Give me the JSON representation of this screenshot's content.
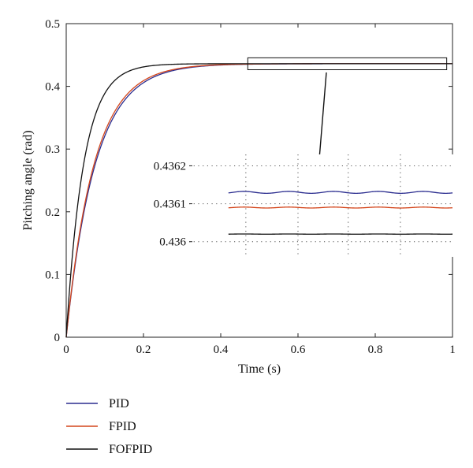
{
  "chart_data": {
    "type": "line",
    "xlabel": "Time (s)",
    "ylabel": "Pitching angle (rad)",
    "xlim": [
      0,
      1
    ],
    "ylim": [
      0,
      0.5
    ],
    "x_ticks": [
      "0",
      "0.2",
      "0.4",
      "0.6",
      "0.8",
      "1"
    ],
    "y_ticks": [
      "0",
      "0.1",
      "0.2",
      "0.3",
      "0.4",
      "0.5"
    ],
    "legend": {
      "position": "bottom-left",
      "entries": [
        "PID",
        "FPID",
        "FOFPID"
      ]
    },
    "series": [
      {
        "name": "PID",
        "color": "#2b2d8f",
        "final_value": 0.4361,
        "time_constant": 0.075
      },
      {
        "name": "FPID",
        "color": "#d4461c",
        "final_value": 0.4361,
        "time_constant": 0.072
      },
      {
        "name": "FOFPID",
        "color": "#111111",
        "final_value": 0.4361,
        "time_constant": 0.045
      }
    ],
    "zoom_box": {
      "xlim": [
        0.47,
        0.985
      ],
      "ylim": [
        0.4265,
        0.4455
      ]
    },
    "inset": {
      "y_ticks": [
        "0.4362",
        "0.4361",
        "0.436"
      ],
      "ylim": [
        0.43596,
        0.43623
      ],
      "series": [
        {
          "name": "PID",
          "color": "#2b2d8f",
          "mean": 0.43613,
          "amplitude": 2.5e-06,
          "periods": 5
        },
        {
          "name": "FPID",
          "color": "#d4461c",
          "mean": 0.43609,
          "amplitude": 1.2e-06,
          "periods": 5
        },
        {
          "name": "FOFPID",
          "color": "#111111",
          "mean": 0.43602,
          "amplitude": 3e-07,
          "periods": 5
        }
      ]
    }
  }
}
